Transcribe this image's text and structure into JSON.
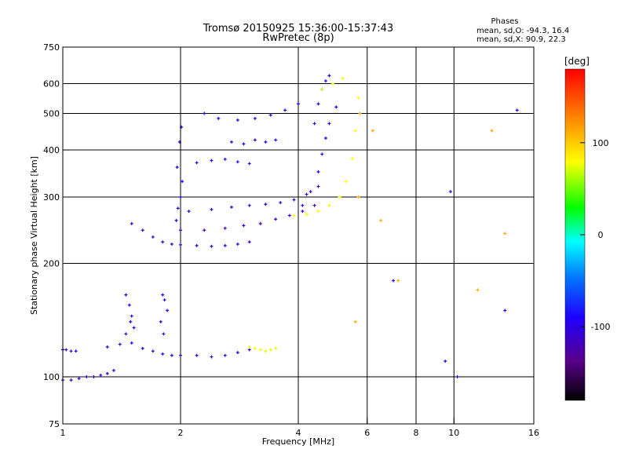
{
  "title_line1": "Tromsø 20150925 15:36:00-15:37:43",
  "title_line2": "RwPretec (8p)",
  "phases": {
    "heading": "Phases",
    "line_o": "mean, sd,O: -94.3, 16.4",
    "line_x": "mean, sd,X:  90.9, 22.3"
  },
  "chart_data": {
    "type": "scatter",
    "xlabel": "Frequency [MHz]",
    "ylabel": "Stationary phase Virtual Height [km]",
    "x_scale": "log",
    "y_scale": "log",
    "xlim": [
      1,
      16
    ],
    "ylim": [
      75,
      750
    ],
    "x_ticks": [
      1,
      2,
      4,
      6,
      8,
      10,
      16
    ],
    "x_tick_labels": [
      "1",
      "2",
      "4",
      "6",
      "8",
      "10",
      "16"
    ],
    "x_gridlines": [
      2,
      4,
      6,
      8,
      10
    ],
    "y_ticks": [
      75,
      100,
      200,
      300,
      400,
      500,
      600,
      750
    ],
    "y_tick_labels": [
      "75",
      "100",
      "200",
      "300",
      "400",
      "500",
      "600",
      "750"
    ],
    "y_gridlines": [
      100,
      200,
      300,
      400,
      500,
      600
    ],
    "grid": true,
    "colorbar": {
      "label": "[deg]",
      "min": -180,
      "max": 180,
      "ticks": [
        100,
        0,
        -100
      ],
      "tick_labels": [
        "100",
        "0",
        "-100"
      ],
      "colormap": [
        "#000000",
        "#5a008c",
        "#1e00ff",
        "#0080ff",
        "#00ffff",
        "#00ff00",
        "#ffff00",
        "#ff8000",
        "#ff0000"
      ]
    },
    "series": [
      {
        "description_phase": -110,
        "x": [
          1.0,
          1.05,
          1.1,
          1.15,
          1.2,
          1.25,
          1.3,
          1.35
        ],
        "y": [
          98,
          98,
          99,
          100,
          100,
          101,
          102,
          104
        ]
      },
      {
        "phase": -105,
        "x": [
          1.0,
          1.02,
          1.05,
          1.08
        ],
        "y": [
          118,
          118,
          117,
          117
        ]
      },
      {
        "phase": -105,
        "x": [
          1.3,
          1.4,
          1.5,
          1.6,
          1.7,
          1.8,
          1.9,
          2.0,
          2.2,
          2.4,
          2.6,
          2.8,
          3.0
        ],
        "y": [
          120,
          122,
          123,
          119,
          117,
          115,
          114,
          114,
          114,
          113,
          114,
          116,
          118
        ]
      },
      {
        "phase": 85,
        "x": [
          3.0,
          3.1,
          3.2,
          3.3,
          3.4,
          3.5
        ],
        "y": [
          120,
          119,
          118,
          117,
          118,
          119
        ]
      },
      {
        "phase": -100,
        "x": [
          1.45,
          1.48,
          1.5,
          1.52,
          1.45,
          1.49
        ],
        "y": [
          165,
          155,
          145,
          135,
          130,
          140
        ]
      },
      {
        "phase": -100,
        "x": [
          1.8,
          1.82,
          1.85,
          1.78,
          1.81
        ],
        "y": [
          165,
          160,
          150,
          140,
          130
        ]
      },
      {
        "phase": -110,
        "x": [
          1.5,
          1.6,
          1.7,
          1.8,
          1.9,
          2.0,
          2.2,
          2.4,
          2.6,
          2.8,
          3.0
        ],
        "y": [
          255,
          245,
          235,
          228,
          225,
          224,
          223,
          222,
          223,
          225,
          228
        ]
      },
      {
        "phase": -100,
        "x": [
          1.95,
          1.97,
          2.0,
          2.02,
          1.96,
          1.99,
          2.01
        ],
        "y": [
          260,
          280,
          300,
          330,
          360,
          420,
          460
        ]
      },
      {
        "phase": -115,
        "x": [
          2.0,
          2.3,
          2.6,
          2.9,
          3.2,
          3.5,
          3.8,
          4.1,
          4.4
        ],
        "y": [
          245,
          245,
          248,
          252,
          255,
          262,
          268,
          275,
          285
        ]
      },
      {
        "phase": -105,
        "x": [
          2.1,
          2.4,
          2.7,
          3.0,
          3.3,
          3.6,
          3.9,
          4.2,
          4.5
        ],
        "y": [
          275,
          278,
          282,
          285,
          287,
          290,
          295,
          305,
          320
        ]
      },
      {
        "phase": -100,
        "x": [
          2.2,
          2.4,
          2.6,
          2.8,
          3.0
        ],
        "y": [
          370,
          375,
          378,
          372,
          368
        ]
      },
      {
        "phase": -100,
        "x": [
          2.7,
          2.9,
          3.1,
          3.3,
          3.5
        ],
        "y": [
          420,
          415,
          425,
          420,
          425
        ]
      },
      {
        "phase": -100,
        "x": [
          2.3,
          2.5,
          2.8,
          3.1,
          3.4,
          3.7,
          4.0
        ],
        "y": [
          500,
          485,
          480,
          485,
          495,
          510,
          530
        ]
      },
      {
        "phase": -95,
        "x": [
          4.1,
          4.3,
          4.5,
          4.6,
          4.7,
          4.8,
          5.0
        ],
        "y": [
          285,
          310,
          350,
          390,
          430,
          470,
          520
        ]
      },
      {
        "phase": -100,
        "x": [
          4.4,
          4.5,
          4.6,
          4.7,
          4.8
        ],
        "y": [
          470,
          530,
          580,
          610,
          630
        ]
      },
      {
        "phase": 90,
        "x": [
          3.9,
          4.2,
          4.5,
          4.8,
          5.1,
          5.3,
          5.5,
          5.6,
          5.7
        ],
        "y": [
          268,
          270,
          275,
          285,
          300,
          330,
          380,
          450,
          550
        ]
      },
      {
        "phase": 85,
        "x": [
          4.6,
          4.9,
          5.2
        ],
        "y": [
          580,
          600,
          620
        ]
      },
      {
        "phase": 120,
        "x": [
          5.6,
          5.7,
          5.75,
          6.2,
          6.5,
          7.2,
          11.5,
          12.5,
          13.5
        ],
        "y": [
          140,
          300,
          500,
          450,
          260,
          180,
          170,
          450,
          240
        ]
      },
      {
        "phase": -100,
        "x": [
          7.0,
          9.5,
          9.8,
          10.2,
          13.5,
          14.5
        ],
        "y": [
          180,
          110,
          310,
          100,
          150,
          510
        ]
      }
    ]
  }
}
